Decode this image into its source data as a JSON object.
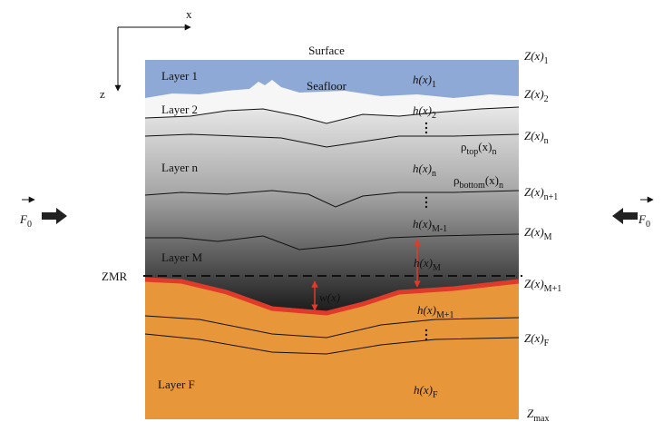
{
  "axes": {
    "x": "x",
    "z": "z"
  },
  "surface": "Surface",
  "seafloor": "Seafloor",
  "layers": [
    "Layer 1",
    "Layer 2",
    "Layer n",
    "Layer M",
    "Layer F"
  ],
  "zmr": "ZMR",
  "thickness": [
    {
      "parts": [
        "h(x)",
        "1"
      ]
    },
    {
      "parts": [
        "h(x)",
        "2"
      ]
    },
    {
      "parts": [
        "h(x)",
        "n"
      ]
    },
    {
      "parts": [
        "h(x)",
        "M-1"
      ]
    },
    {
      "parts": [
        "h(x)",
        "M"
      ]
    },
    {
      "parts": [
        "h(x)",
        "M+1"
      ]
    },
    {
      "parts": [
        "h(x)",
        "F"
      ]
    }
  ],
  "depths": [
    {
      "parts": [
        "Z(x)",
        "1"
      ]
    },
    {
      "parts": [
        "Z(x)",
        "2"
      ]
    },
    {
      "parts": [
        "Z(x)",
        "n"
      ]
    },
    {
      "parts": [
        "Z(x)",
        "n+1"
      ]
    },
    {
      "parts": [
        "Z(x)",
        "M"
      ]
    },
    {
      "parts": [
        "Z(x)",
        "M+1"
      ]
    },
    {
      "parts": [
        "Z(x)",
        "F"
      ]
    },
    {
      "parts": [
        "Z",
        "max"
      ]
    }
  ],
  "densities": [
    {
      "parts": [
        "ρ",
        "top",
        "(x)",
        "n"
      ]
    },
    {
      "parts": [
        "ρ",
        "bottom",
        "(x)",
        "n"
      ]
    }
  ],
  "width": {
    "parts": [
      "w(x)"
    ]
  },
  "force": {
    "left": {
      "parts": [
        "F",
        "0"
      ]
    },
    "right": {
      "parts": [
        "F",
        "0"
      ]
    }
  }
}
